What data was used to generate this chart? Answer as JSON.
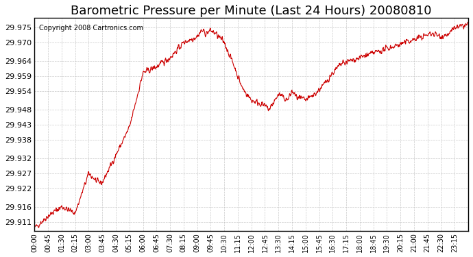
{
  "title": "Barometric Pressure per Minute (Last 24 Hours) 20080810",
  "copyright": "Copyright 2008 Cartronics.com",
  "line_color": "#cc0000",
  "bg_color": "#ffffff",
  "plot_bg_color": "#ffffff",
  "grid_color": "#bbbbbb",
  "yticks": [
    29.911,
    29.916,
    29.922,
    29.927,
    29.932,
    29.938,
    29.943,
    29.948,
    29.954,
    29.959,
    29.964,
    29.97,
    29.975
  ],
  "ylim": [
    29.908,
    29.978
  ],
  "xtick_positions": [
    0,
    45,
    90,
    135,
    180,
    225,
    270,
    315,
    360,
    405,
    450,
    495,
    540,
    585,
    630,
    675,
    720,
    765,
    810,
    855,
    900,
    945,
    990,
    1035,
    1080,
    1125,
    1170,
    1215,
    1260,
    1305,
    1350,
    1395
  ],
  "xtick_labels": [
    "00:00",
    "00:45",
    "01:30",
    "02:15",
    "03:00",
    "03:45",
    "04:30",
    "05:15",
    "06:00",
    "06:45",
    "07:30",
    "08:15",
    "09:00",
    "09:45",
    "10:30",
    "11:15",
    "12:00",
    "12:45",
    "13:30",
    "14:15",
    "15:00",
    "15:45",
    "16:30",
    "17:15",
    "18:00",
    "18:45",
    "19:30",
    "20:15",
    "21:00",
    "21:45",
    "22:30",
    "23:15"
  ],
  "keypoints_min": [
    0,
    45,
    90,
    135,
    180,
    210,
    225,
    270,
    315,
    360,
    405,
    450,
    495,
    540,
    555,
    570,
    585,
    600,
    630,
    660,
    690,
    720,
    750,
    780,
    810,
    825,
    840,
    855,
    870,
    900,
    930,
    960,
    990,
    1020,
    1050,
    1080,
    1110,
    1140,
    1170,
    1200,
    1230,
    1260,
    1290,
    1320,
    1350,
    1380,
    1395,
    1410,
    1440
  ],
  "keypoints_val": [
    29.909,
    29.913,
    29.916,
    29.914,
    29.927,
    29.924,
    29.924,
    29.933,
    29.942,
    29.96,
    29.962,
    29.965,
    29.97,
    29.972,
    29.974,
    29.973,
    29.974,
    29.973,
    29.97,
    29.963,
    29.955,
    29.951,
    29.95,
    29.948,
    29.953,
    29.952,
    29.951,
    29.954,
    29.952,
    29.951,
    29.953,
    29.956,
    29.96,
    29.963,
    29.964,
    29.965,
    29.966,
    29.967,
    29.968,
    29.969,
    29.97,
    29.971,
    29.972,
    29.973,
    29.972,
    29.973,
    29.975,
    29.975,
    29.976
  ],
  "noise_seed": 42,
  "noise_std": 0.0008,
  "smooth_size": 3,
  "title_fontsize": 13,
  "copyright_fontsize": 7,
  "ylabel_fontsize": 8,
  "xlabel_fontsize": 7,
  "line_width": 0.8
}
